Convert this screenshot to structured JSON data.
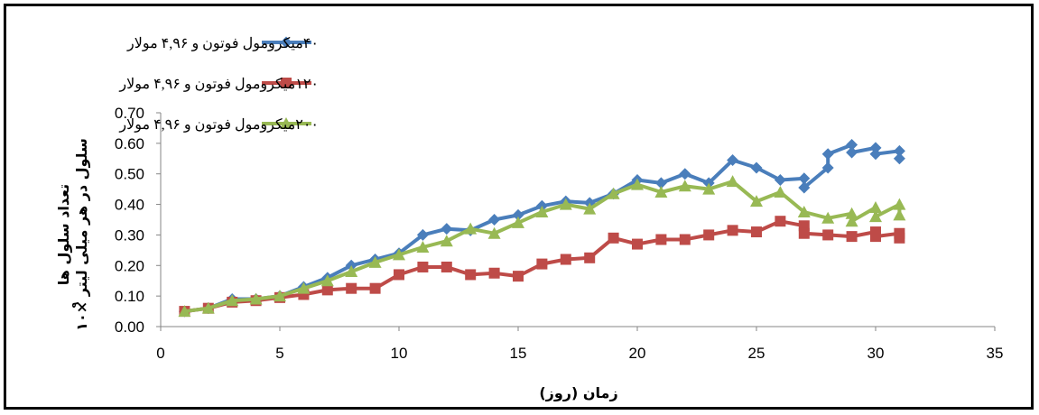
{
  "chart_data": {
    "type": "line",
    "xlabel": "زمان (روز)",
    "ylabel_line1": "تعداد سلول ها",
    "ylabel_line2": "سلول در هر میلی لیتر ×۱۰",
    "ylabel_exp": "۹",
    "xlim": [
      0,
      35
    ],
    "ylim": [
      0,
      0.7
    ],
    "x_ticks": [
      0,
      5,
      10,
      15,
      20,
      25,
      30,
      35
    ],
    "y_ticks": [
      0.0,
      0.1,
      0.2,
      0.3,
      0.4,
      0.5,
      0.6,
      0.7
    ],
    "y_tick_labels": [
      "0.00",
      "0.10",
      "0.20",
      "0.30",
      "0.40",
      "0.50",
      "0.60",
      "0.70"
    ],
    "grid": false,
    "legend_position": "top-left",
    "series": [
      {
        "name": "۴۰میکرومول فوتون و ۴,۹۶ مولار",
        "color": "#4a7ebb",
        "marker": "diamond",
        "points": [
          [
            1,
            0.05
          ],
          [
            2,
            0.06
          ],
          [
            3,
            0.09
          ],
          [
            4,
            0.09
          ],
          [
            5,
            0.1
          ],
          [
            6,
            0.13
          ],
          [
            7,
            0.16
          ],
          [
            8,
            0.2
          ],
          [
            9,
            0.22
          ],
          [
            10,
            0.24
          ],
          [
            11,
            0.3
          ],
          [
            12,
            0.32
          ],
          [
            13,
            0.315
          ],
          [
            14,
            0.35
          ],
          [
            15,
            0.365
          ],
          [
            16,
            0.395
          ],
          [
            17,
            0.41
          ],
          [
            18,
            0.405
          ],
          [
            19,
            0.435
          ],
          [
            20,
            0.48
          ],
          [
            21,
            0.47
          ],
          [
            22,
            0.5
          ],
          [
            23,
            0.47
          ],
          [
            24,
            0.545
          ],
          [
            25,
            0.52
          ],
          [
            26,
            0.48
          ],
          [
            27,
            0.485
          ],
          [
            27,
            0.455
          ],
          [
            28,
            0.52
          ],
          [
            28,
            0.565
          ],
          [
            29,
            0.595
          ],
          [
            29,
            0.57
          ],
          [
            30,
            0.585
          ],
          [
            30,
            0.565
          ],
          [
            31,
            0.575
          ],
          [
            31,
            0.55
          ]
        ]
      },
      {
        "name": "۱۲۰میکرومول فوتون و ۴,۹۶ مولار",
        "color": "#be4b48",
        "marker": "square",
        "points": [
          [
            1,
            0.05
          ],
          [
            2,
            0.06
          ],
          [
            3,
            0.08
          ],
          [
            4,
            0.085
          ],
          [
            5,
            0.095
          ],
          [
            6,
            0.105
          ],
          [
            7,
            0.12
          ],
          [
            8,
            0.125
          ],
          [
            9,
            0.125
          ],
          [
            10,
            0.17
          ],
          [
            11,
            0.195
          ],
          [
            12,
            0.195
          ],
          [
            13,
            0.17
          ],
          [
            14,
            0.175
          ],
          [
            15,
            0.165
          ],
          [
            16,
            0.205
          ],
          [
            17,
            0.22
          ],
          [
            18,
            0.225
          ],
          [
            19,
            0.29
          ],
          [
            20,
            0.27
          ],
          [
            21,
            0.285
          ],
          [
            22,
            0.285
          ],
          [
            23,
            0.3
          ],
          [
            24,
            0.315
          ],
          [
            25,
            0.31
          ],
          [
            26,
            0.345
          ],
          [
            27,
            0.33
          ],
          [
            27,
            0.305
          ],
          [
            28,
            0.3
          ],
          [
            29,
            0.295
          ],
          [
            30,
            0.31
          ],
          [
            30,
            0.295
          ],
          [
            31,
            0.305
          ],
          [
            31,
            0.29
          ]
        ]
      },
      {
        "name": "۲۰۰میکرومول فوتون و ۴,۹۶ مولار",
        "color": "#98b954",
        "marker": "triangle",
        "points": [
          [
            1,
            0.05
          ],
          [
            2,
            0.06
          ],
          [
            3,
            0.085
          ],
          [
            4,
            0.09
          ],
          [
            5,
            0.1
          ],
          [
            6,
            0.125
          ],
          [
            7,
            0.15
          ],
          [
            8,
            0.18
          ],
          [
            9,
            0.21
          ],
          [
            10,
            0.235
          ],
          [
            11,
            0.26
          ],
          [
            12,
            0.28
          ],
          [
            13,
            0.32
          ],
          [
            14,
            0.305
          ],
          [
            15,
            0.34
          ],
          [
            16,
            0.375
          ],
          [
            17,
            0.4
          ],
          [
            18,
            0.385
          ],
          [
            19,
            0.435
          ],
          [
            20,
            0.465
          ],
          [
            21,
            0.44
          ],
          [
            22,
            0.46
          ],
          [
            23,
            0.45
          ],
          [
            24,
            0.475
          ],
          [
            25,
            0.41
          ],
          [
            26,
            0.44
          ],
          [
            27,
            0.375
          ],
          [
            28,
            0.355
          ],
          [
            29,
            0.37
          ],
          [
            29,
            0.345
          ],
          [
            30,
            0.39
          ],
          [
            30,
            0.36
          ],
          [
            31,
            0.4
          ],
          [
            31,
            0.365
          ]
        ]
      }
    ]
  }
}
